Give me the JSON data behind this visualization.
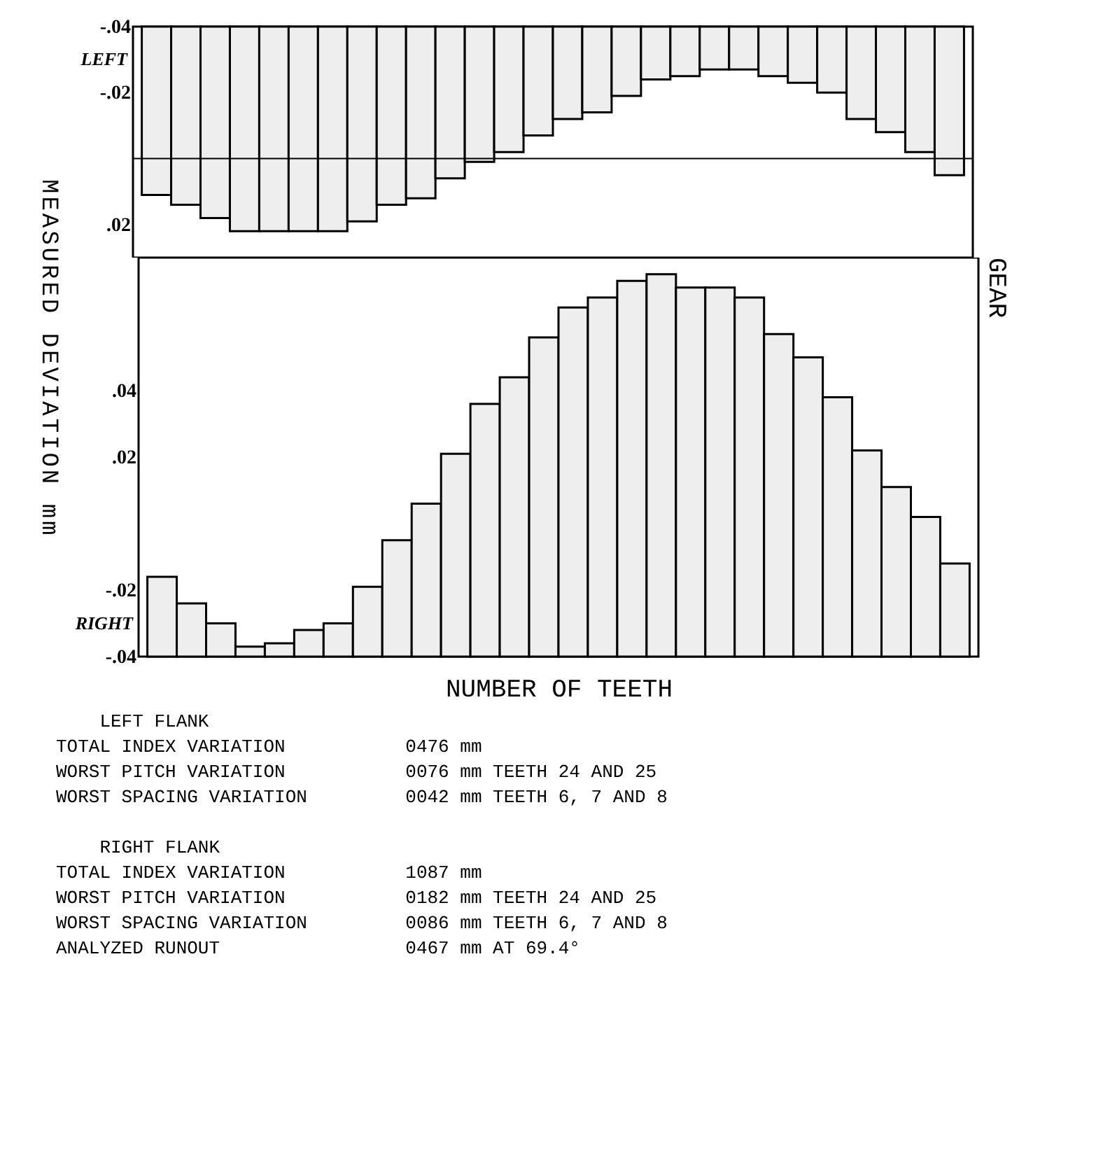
{
  "chart_data": [
    {
      "type": "bar",
      "ylabel": "MEASURED DEVIATION mm",
      "annotations": [
        "LEFT"
      ],
      "color": "#eeeeee",
      "categories": [
        null,
        null,
        null,
        null,
        null,
        null,
        null,
        null,
        null,
        null,
        null,
        null,
        null,
        null,
        null,
        null,
        null,
        null,
        null,
        null,
        null,
        null,
        null,
        null,
        null,
        null,
        null,
        null
      ],
      "base": [
        -0.04,
        -0.04,
        -0.04,
        -0.04,
        -0.04,
        -0.04,
        -0.04,
        -0.04,
        -0.04,
        -0.04,
        -0.04,
        -0.04,
        -0.04,
        -0.04,
        -0.04,
        -0.04,
        -0.04,
        -0.04,
        -0.04,
        -0.04,
        -0.04,
        -0.04,
        -0.04,
        -0.04,
        -0.04,
        -0.04,
        -0.04,
        -0.04
      ],
      "values": [
        0.051,
        0.054,
        0.058,
        0.062,
        0.062,
        0.062,
        0.062,
        0.059,
        0.054,
        0.052,
        0.046,
        0.041,
        0.038,
        0.033,
        0.028,
        0.026,
        0.021,
        0.016,
        0.015,
        0.013,
        0.013,
        0.015,
        0.017,
        0.02,
        0.028,
        0.032,
        0.038,
        0.045
      ],
      "ylim": [
        0.03,
        -0.04
      ],
      "yticks": [
        {
          "value": -0.04,
          "label": "-.04"
        },
        {
          "value": -0.02,
          "label": "-.02"
        },
        {
          "value": 0.02,
          "label": ".02"
        }
      ],
      "ref_lines": [
        {
          "axis": "y",
          "value": 0
        }
      ],
      "tick_labels": "y",
      "grid": false
    },
    {
      "type": "bar",
      "title": "GEAR",
      "xlabel": "NUMBER OF TEETH",
      "annotations": [
        "RIGHT"
      ],
      "color": "#eeeeee",
      "categories": [
        null,
        null,
        null,
        null,
        null,
        null,
        null,
        null,
        null,
        null,
        null,
        null,
        null,
        null,
        null,
        null,
        null,
        null,
        null,
        null,
        null,
        null,
        null,
        null,
        null,
        null,
        null,
        null
      ],
      "base": [
        -0.04,
        -0.04,
        -0.04,
        -0.04,
        -0.04,
        -0.04,
        -0.04,
        -0.04,
        -0.04,
        -0.04,
        -0.04,
        -0.04,
        -0.04,
        -0.04,
        -0.04,
        -0.04,
        -0.04,
        -0.04,
        -0.04,
        -0.04,
        -0.04,
        -0.04,
        -0.04,
        -0.04,
        -0.04,
        -0.04,
        -0.04,
        -0.04
      ],
      "values": [
        0.024,
        0.016,
        0.01,
        0.003,
        0.004,
        0.008,
        0.01,
        0.021,
        0.035,
        0.046,
        0.061,
        0.076,
        0.084,
        0.096,
        0.105,
        0.108,
        0.113,
        0.115,
        0.111,
        0.111,
        0.108,
        0.097,
        0.09,
        0.078,
        0.062,
        0.051,
        0.042,
        0.028
      ],
      "ylim": [
        -0.04,
        0.08
      ],
      "yticks": [
        {
          "value": -0.04,
          "label": "-.04"
        },
        {
          "value": -0.02,
          "label": "-.02"
        },
        {
          "value": 0.02,
          "label": ".02"
        },
        {
          "value": 0.04,
          "label": ".04"
        }
      ],
      "tick_labels": "y",
      "grid": false
    },
    {
      "type": "other",
      "annotations": [
        "    LEFT FLANK",
        "TOTAL INDEX VARIATION           0476 mm",
        "WORST PITCH VARIATION           0076 mm TEETH 24 AND 25",
        "WORST SPACING VARIATION         0042 mm TEETH 6, 7 AND 8",
        "    RIGHT FLANK",
        "TOTAL INDEX VARIATION           1087 mm",
        "WORST PITCH VARIATION           0182 mm TEETH 24 AND 25",
        "WORST SPACING VARIATION         0086 mm TEETH 6, 7 AND 8",
        "ANALYZED RUNOUT                 0467 mm AT 69.4°"
      ]
    }
  ]
}
